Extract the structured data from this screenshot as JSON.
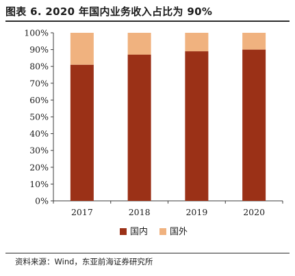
{
  "header": {
    "title": "图表 6.   2020 年国内业务收入占比为 90%"
  },
  "footer": {
    "source": "资料来源：Wind，东亚前海证券研究所"
  },
  "chart_data": {
    "type": "bar",
    "stacked": true,
    "categories": [
      "2017",
      "2018",
      "2019",
      "2020"
    ],
    "series": [
      {
        "name": "国内",
        "values": [
          81,
          87,
          89,
          90
        ],
        "color": "#9b3117"
      },
      {
        "name": "国外",
        "values": [
          19,
          13,
          11,
          10
        ],
        "color": "#f0b27f"
      }
    ],
    "ylim": [
      0,
      100
    ],
    "yticks": [
      0,
      10,
      20,
      30,
      40,
      50,
      60,
      70,
      80,
      90,
      100
    ],
    "ytick_format": "percent",
    "grid": false,
    "legend_position": "bottom"
  }
}
